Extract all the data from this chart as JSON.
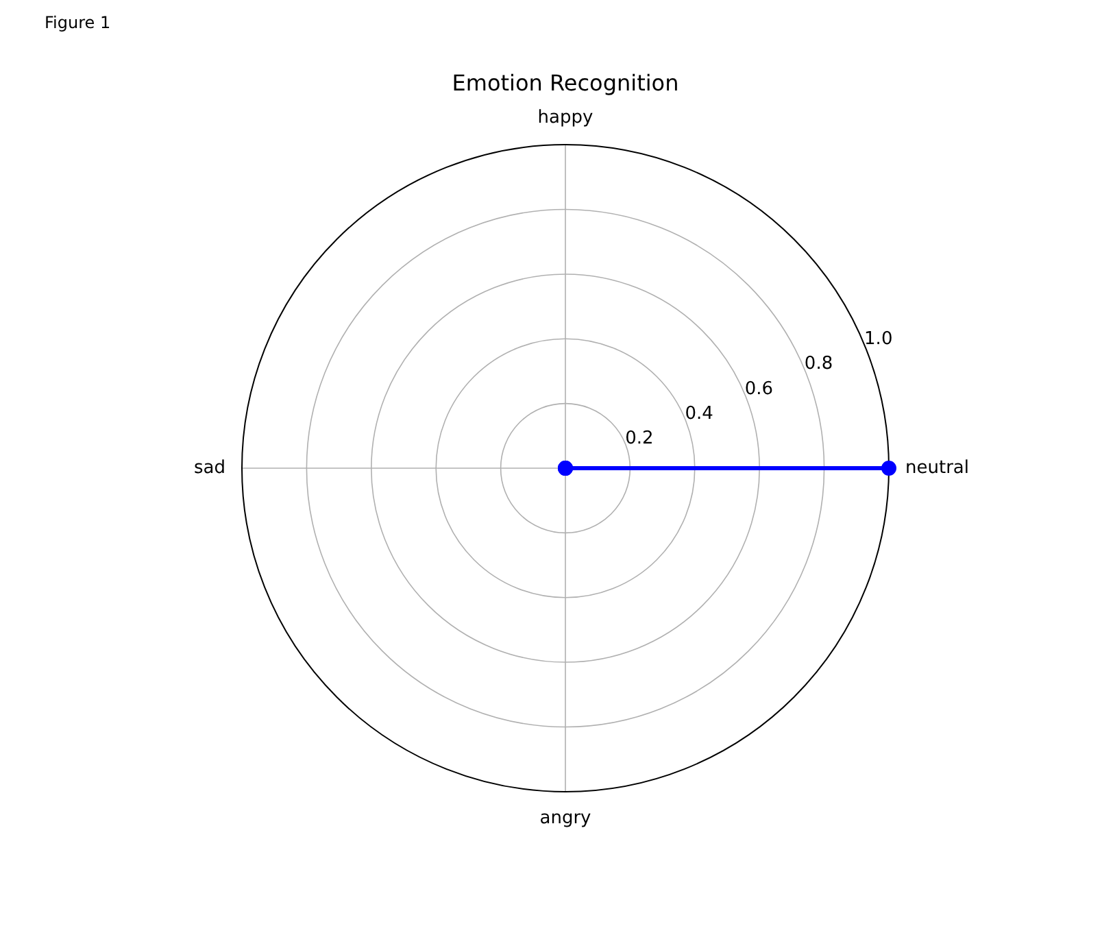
{
  "chart_data": {
    "type": "radar",
    "title": "Emotion Recognition",
    "annotations": [
      "Figure 1"
    ],
    "categories": [
      "happy",
      "neutral",
      "angry",
      "sad"
    ],
    "series": [
      {
        "color": "#0000ff",
        "values": [
          0,
          1,
          0,
          0
        ]
      }
    ],
    "ylim": [
      0,
      1
    ],
    "yticks": [
      0.2,
      0.4,
      0.6,
      0.8,
      {
        "value": 1,
        "label": "1.0"
      }
    ],
    "grid": true,
    "marker": "circle",
    "line_style": "solid"
  }
}
